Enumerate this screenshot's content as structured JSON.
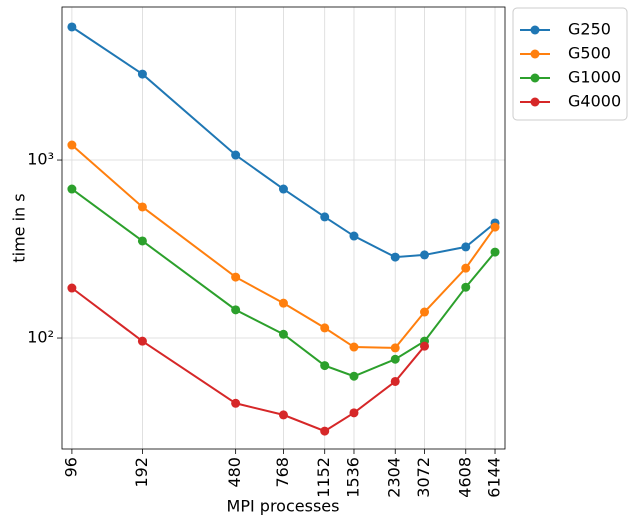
{
  "chart_data": {
    "type": "line",
    "xlabel": "MPI processes",
    "ylabel": "time in s",
    "x": [
      96,
      192,
      480,
      768,
      1152,
      1536,
      2304,
      3072,
      4608,
      6144
    ],
    "series": [
      {
        "name": "G250",
        "color": "#1f77b4",
        "values": [
          5590,
          3040,
          1067,
          687,
          479,
          374,
          285,
          293,
          325,
          443
        ]
      },
      {
        "name": "G500",
        "color": "#ff7f0e",
        "values": [
          1214,
          545,
          220,
          157,
          114,
          89,
          88,
          140,
          247,
          420
        ]
      },
      {
        "name": "G1000",
        "color": "#2ca02c",
        "values": [
          687,
          351,
          144,
          105,
          70,
          61,
          76,
          96,
          193,
          304
        ]
      },
      {
        "name": "G4000",
        "color": "#d62728",
        "values": [
          191,
          96,
          43,
          37,
          30,
          38,
          57,
          90,
          null,
          null
        ]
      }
    ],
    "xscale": "log",
    "yscale": "log",
    "xlim": [
      87.1,
      6777
    ],
    "ylim": [
      23.8,
      7240
    ],
    "xticks": [
      96,
      192,
      480,
      768,
      1152,
      1536,
      2304,
      3072,
      4608,
      6144
    ],
    "yticks": [
      {
        "value": 100,
        "label": "10²"
      },
      {
        "value": 1000,
        "label": "10³"
      }
    ],
    "grid": true,
    "legend": "outside"
  }
}
